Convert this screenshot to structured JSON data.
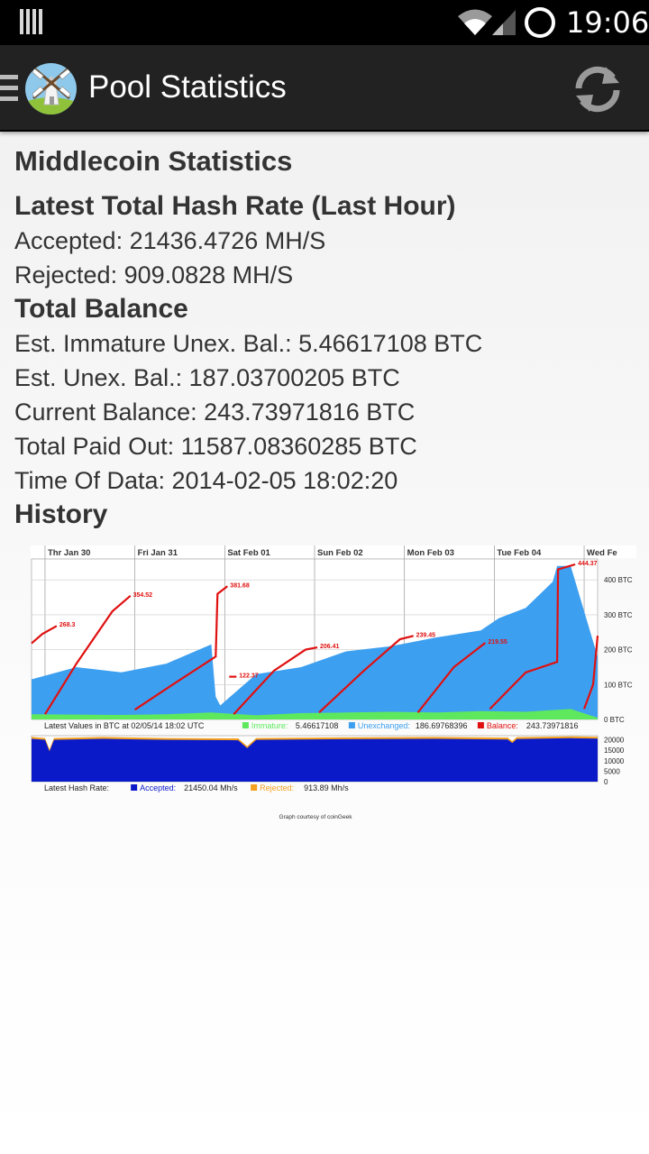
{
  "status_bar": {
    "time": "19:06"
  },
  "action_bar": {
    "title": "Pool Statistics"
  },
  "stats": {
    "title": "Middlecoin Statistics",
    "hash_rate": {
      "heading": "Latest Total Hash Rate (Last Hour)",
      "accepted": "Accepted: 21436.4726 MH/S",
      "rejected": "Rejected: 909.0828 MH/S"
    },
    "balance": {
      "heading": "Total Balance",
      "immature": "Est. Immature Unex. Bal.: 5.46617108 BTC",
      "unexchanged": "Est. Unex. Bal.: 187.03700205 BTC",
      "current": "Current Balance: 243.73971816 BTC",
      "paid_out": "Total Paid Out: 11587.08360285 BTC",
      "time_of_data": "Time Of Data: 2014-02-05 18:02:20"
    },
    "history_heading": "History"
  },
  "colors": {
    "immature": "#5ee85e",
    "unexchanged": "#3d9ff0",
    "balance": "#e01010",
    "accepted": "#0a1ac8",
    "rejected": "#f4a020"
  },
  "chart_data": [
    {
      "type": "area",
      "categories": [
        "Thr Jan 30",
        "Fri Jan 31",
        "Sat Feb 01",
        "Sun Feb 02",
        "Mon Feb 03",
        "Tue Feb 04",
        "Wed Fe"
      ],
      "yticks": [
        {
          "label": "400 BTC",
          "value": 400
        },
        {
          "label": "300 BTC",
          "value": 300
        },
        {
          "label": "200 BTC",
          "value": 200
        },
        {
          "label": "100 BTC",
          "value": 100
        },
        {
          "label": "0 BTC",
          "value": 0
        }
      ],
      "ylim": [
        0,
        460
      ],
      "xlim": [
        0,
        6.3
      ],
      "grid": true,
      "series": [
        {
          "name": "Immature",
          "x": [
            0,
            0.5,
            1,
            1.5,
            2,
            2.5,
            3,
            3.5,
            4,
            4.5,
            5,
            5.5,
            6,
            6.3
          ],
          "values": [
            15,
            14,
            13,
            15,
            20,
            12,
            18,
            20,
            22,
            20,
            24,
            22,
            30,
            5
          ]
        },
        {
          "name": "Unexchanged",
          "x": [
            0,
            0.5,
            1,
            1.5,
            2,
            2.05,
            2.1,
            2.5,
            3,
            3.5,
            4,
            4.5,
            5,
            5.2,
            5.5,
            5.8,
            5.85,
            6.0,
            6.3
          ],
          "values": [
            115,
            150,
            135,
            160,
            215,
            65,
            40,
            130,
            150,
            195,
            210,
            235,
            255,
            290,
            320,
            395,
            440,
            440,
            180
          ]
        },
        {
          "name": "Balance",
          "segments": [
            {
              "x": [
                0,
                0.12,
                0.28
              ],
              "values": [
                218,
                245,
                268
              ]
            },
            {
              "x": [
                0.15,
                0.5,
                0.9,
                1.1
              ],
              "values": [
                15,
                160,
                310,
                354.52
              ]
            },
            {
              "x": [
                1.15,
                1.6,
                2.05,
                2.07,
                2.18
              ],
              "values": [
                28,
                105,
                180,
                360,
                381.68
              ]
            },
            {
              "x": [
                2.2,
                2.28
              ],
              "values": [
                122.37,
                122.37
              ]
            },
            {
              "x": [
                2.25,
                2.7,
                3.05,
                3.18
              ],
              "values": [
                15,
                140,
                200,
                206.41
              ]
            },
            {
              "x": [
                3.2,
                3.7,
                4.1,
                4.25
              ],
              "values": [
                20,
                140,
                230,
                239.45
              ]
            },
            {
              "x": [
                4.3,
                4.7,
                5.05
              ],
              "values": [
                20,
                150,
                219.55
              ]
            },
            {
              "x": [
                5.1,
                5.5,
                5.85,
                5.86,
                6.05
              ],
              "values": [
                30,
                135,
                165,
                430,
                444.37
              ]
            },
            {
              "x": [
                6.15,
                6.25,
                6.3
              ],
              "values": [
                30,
                100,
                240
              ]
            }
          ],
          "labels": [
            {
              "x": 0.28,
              "value": 268.3,
              "text": "268.3"
            },
            {
              "x": 1.1,
              "value": 354.52,
              "text": "354.52"
            },
            {
              "x": 2.18,
              "value": 381.68,
              "text": "381.68"
            },
            {
              "x": 2.28,
              "value": 122.37,
              "text": "122.37"
            },
            {
              "x": 3.18,
              "value": 206.41,
              "text": "206.41"
            },
            {
              "x": 4.25,
              "value": 239.45,
              "text": "239.45"
            },
            {
              "x": 5.05,
              "value": 219.55,
              "text": "219.55"
            },
            {
              "x": 6.05,
              "value": 444.37,
              "text": "444.37"
            }
          ]
        }
      ],
      "legend": {
        "prefix": "Latest Values in BTC at 02/05/14 18:02 UTC",
        "items": [
          {
            "name": "Immature:",
            "value": "5.46617108"
          },
          {
            "name": "Unexchanged:",
            "value": "186.69768396"
          },
          {
            "name": "Balance:",
            "value": "243.73971816"
          }
        ]
      }
    },
    {
      "type": "area",
      "yticks": [
        {
          "label": "20000",
          "value": 20000
        },
        {
          "label": "15000",
          "value": 15000
        },
        {
          "label": "10000",
          "value": 10000
        },
        {
          "label": "5000",
          "value": 5000
        },
        {
          "label": "0",
          "value": 0
        }
      ],
      "ylim": [
        0,
        22000
      ],
      "xlim": [
        0,
        6.3
      ],
      "series": [
        {
          "name": "Accepted",
          "x": [
            0,
            0.15,
            0.2,
            0.25,
            0.8,
            1.5,
            2.3,
            2.4,
            2.5,
            3.5,
            4.5,
            5.3,
            5.35,
            5.4,
            6.0,
            6.3
          ],
          "values": [
            20500,
            20000,
            14500,
            20000,
            20500,
            20000,
            19800,
            16000,
            20000,
            20300,
            20500,
            20200,
            18500,
            20400,
            20800,
            20600
          ]
        },
        {
          "name": "Rejected",
          "x": [
            0,
            6.3
          ],
          "values": [
            900,
            900
          ]
        }
      ],
      "legend": {
        "prefix": "Latest Hash Rate:",
        "items": [
          {
            "name": "Accepted:",
            "value": "21450.04 Mh/s"
          },
          {
            "name": "Rejected:",
            "value": "913.89 Mh/s"
          }
        ]
      },
      "credit": "Graph courtesy of coinGeek"
    }
  ]
}
